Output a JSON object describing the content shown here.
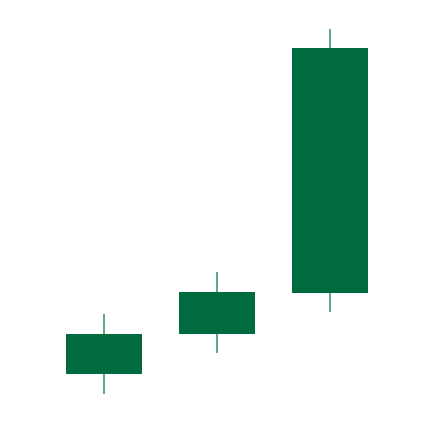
{
  "chart_data": {
    "type": "candlestick",
    "title": "",
    "xlabel": "",
    "ylabel": "",
    "grid": false,
    "legend": "none",
    "ylim": [
      0,
      422
    ],
    "candles": [
      {
        "open": 48,
        "close": 88,
        "high": 108,
        "low": 28
      },
      {
        "open": 88,
        "close": 130,
        "high": 150,
        "low": 69
      },
      {
        "open": 129,
        "close": 374,
        "high": 393,
        "low": 110
      }
    ],
    "colors": {
      "up": "#006b3f",
      "wick": "#006b3f",
      "background": "#ffffff"
    }
  }
}
